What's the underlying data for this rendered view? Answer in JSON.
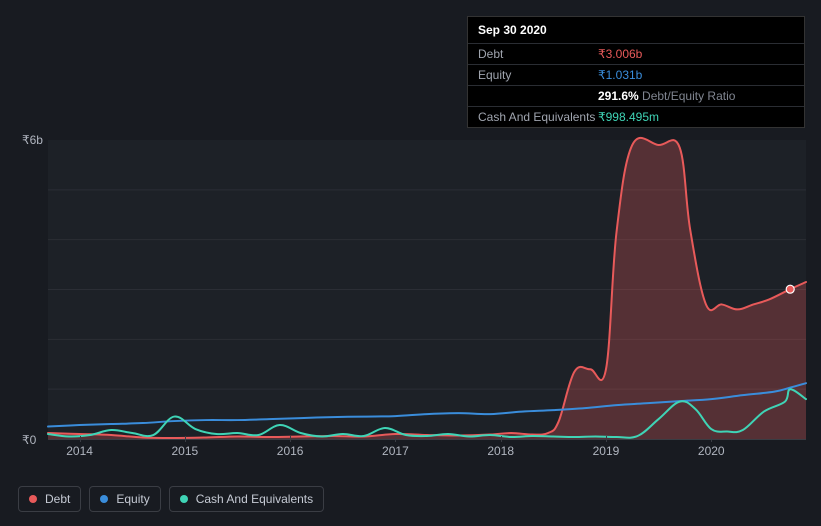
{
  "tooltip": {
    "date": "Sep 30 2020",
    "rows": [
      {
        "label": "Debt",
        "value": "₹3.006b",
        "color": "#e85a5a"
      },
      {
        "label": "Equity",
        "value": "₹1.031b",
        "color": "#3a8ddb"
      },
      {
        "label_blank": "",
        "pct": "291.6%",
        "pct_suffix": " Debt/Equity Ratio",
        "pct_color": "#ffffff",
        "suffix_color": "#808590"
      },
      {
        "label": "Cash And Equivalents",
        "value": "₹998.495m",
        "color": "#3fd4b6"
      }
    ]
  },
  "chart": {
    "type": "area-line",
    "background_color": "#1d2127",
    "grid_color": "#2b2e35",
    "axis_color": "#3a3d44",
    "label_color": "#b0b5bf",
    "label_fontsize": 12,
    "ylim": [
      0,
      6
    ],
    "y_unit": "b",
    "ytick_labels": [
      {
        "value": 0,
        "text": "₹0"
      },
      {
        "value": 6,
        "text": "₹6b"
      }
    ],
    "years": [
      2014,
      2015,
      2016,
      2017,
      2018,
      2019,
      2020
    ],
    "x_domain": [
      2013.7,
      2020.9
    ],
    "series": [
      {
        "name": "Debt",
        "color": "#e85a5a",
        "fill_opacity": 0.28,
        "line_width": 2,
        "area": true,
        "points": [
          [
            2013.7,
            0.12
          ],
          [
            2014.0,
            0.1
          ],
          [
            2014.3,
            0.08
          ],
          [
            2014.6,
            0.03
          ],
          [
            2014.9,
            0.02
          ],
          [
            2015.2,
            0.03
          ],
          [
            2015.5,
            0.05
          ],
          [
            2015.8,
            0.04
          ],
          [
            2016.1,
            0.05
          ],
          [
            2016.4,
            0.06
          ],
          [
            2016.7,
            0.05
          ],
          [
            2017.0,
            0.1
          ],
          [
            2017.3,
            0.08
          ],
          [
            2017.6,
            0.07
          ],
          [
            2017.9,
            0.09
          ],
          [
            2018.1,
            0.12
          ],
          [
            2018.3,
            0.09
          ],
          [
            2018.45,
            0.12
          ],
          [
            2018.55,
            0.35
          ],
          [
            2018.7,
            1.35
          ],
          [
            2018.85,
            1.4
          ],
          [
            2019.0,
            1.4
          ],
          [
            2019.1,
            4.15
          ],
          [
            2019.25,
            5.9
          ],
          [
            2019.5,
            5.9
          ],
          [
            2019.7,
            5.85
          ],
          [
            2019.8,
            4.2
          ],
          [
            2019.95,
            2.7
          ],
          [
            2020.1,
            2.7
          ],
          [
            2020.25,
            2.6
          ],
          [
            2020.4,
            2.7
          ],
          [
            2020.55,
            2.8
          ],
          [
            2020.75,
            3.006
          ],
          [
            2020.9,
            3.15
          ]
        ]
      },
      {
        "name": "Equity",
        "color": "#3a8ddb",
        "fill_opacity": 0,
        "line_width": 2,
        "area": false,
        "points": [
          [
            2013.7,
            0.25
          ],
          [
            2014.0,
            0.28
          ],
          [
            2014.3,
            0.3
          ],
          [
            2014.6,
            0.32
          ],
          [
            2014.9,
            0.36
          ],
          [
            2015.2,
            0.38
          ],
          [
            2015.5,
            0.38
          ],
          [
            2015.8,
            0.4
          ],
          [
            2016.1,
            0.42
          ],
          [
            2016.4,
            0.44
          ],
          [
            2016.7,
            0.45
          ],
          [
            2017.0,
            0.46
          ],
          [
            2017.3,
            0.5
          ],
          [
            2017.6,
            0.52
          ],
          [
            2017.9,
            0.5
          ],
          [
            2018.2,
            0.55
          ],
          [
            2018.5,
            0.58
          ],
          [
            2018.8,
            0.62
          ],
          [
            2019.1,
            0.68
          ],
          [
            2019.4,
            0.72
          ],
          [
            2019.7,
            0.76
          ],
          [
            2020.0,
            0.8
          ],
          [
            2020.3,
            0.88
          ],
          [
            2020.6,
            0.95
          ],
          [
            2020.75,
            1.031
          ],
          [
            2020.9,
            1.12
          ]
        ]
      },
      {
        "name": "Cash And Equivalents",
        "color": "#3fd4b6",
        "fill_opacity": 0,
        "line_width": 2,
        "area": false,
        "points": [
          [
            2013.7,
            0.1
          ],
          [
            2013.9,
            0.05
          ],
          [
            2014.1,
            0.08
          ],
          [
            2014.3,
            0.18
          ],
          [
            2014.5,
            0.12
          ],
          [
            2014.7,
            0.08
          ],
          [
            2014.9,
            0.45
          ],
          [
            2015.1,
            0.2
          ],
          [
            2015.3,
            0.1
          ],
          [
            2015.5,
            0.12
          ],
          [
            2015.7,
            0.08
          ],
          [
            2015.9,
            0.28
          ],
          [
            2016.1,
            0.12
          ],
          [
            2016.3,
            0.05
          ],
          [
            2016.5,
            0.1
          ],
          [
            2016.7,
            0.06
          ],
          [
            2016.9,
            0.22
          ],
          [
            2017.1,
            0.08
          ],
          [
            2017.3,
            0.06
          ],
          [
            2017.5,
            0.1
          ],
          [
            2017.7,
            0.05
          ],
          [
            2017.9,
            0.08
          ],
          [
            2018.1,
            0.04
          ],
          [
            2018.3,
            0.06
          ],
          [
            2018.5,
            0.05
          ],
          [
            2018.7,
            0.04
          ],
          [
            2018.9,
            0.05
          ],
          [
            2019.1,
            0.04
          ],
          [
            2019.3,
            0.06
          ],
          [
            2019.5,
            0.4
          ],
          [
            2019.7,
            0.75
          ],
          [
            2019.85,
            0.6
          ],
          [
            2020.0,
            0.2
          ],
          [
            2020.15,
            0.15
          ],
          [
            2020.3,
            0.18
          ],
          [
            2020.5,
            0.55
          ],
          [
            2020.7,
            0.75
          ],
          [
            2020.75,
            0.998
          ],
          [
            2020.9,
            0.8
          ]
        ]
      }
    ],
    "marker": {
      "x": 2020.75,
      "series": "Debt",
      "value": 3.006,
      "color": "#e85a5a",
      "radius": 4
    }
  },
  "legend": {
    "items": [
      {
        "label": "Debt",
        "color": "#e85a5a"
      },
      {
        "label": "Equity",
        "color": "#3a8ddb"
      },
      {
        "label": "Cash And Equivalents",
        "color": "#3fd4b6"
      }
    ]
  }
}
